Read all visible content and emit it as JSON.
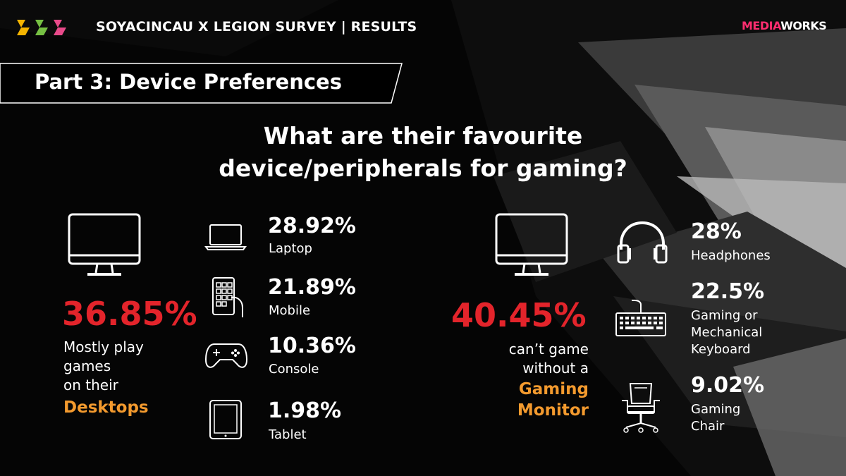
{
  "header": {
    "title": "SOYACINCAU X LEGION SURVEY | RESULTS",
    "brand": {
      "part1": "MEDIA",
      "part2": "WORKS"
    },
    "logo_colors": [
      "#f4b400",
      "#76c043",
      "#e84a8a"
    ]
  },
  "section": {
    "title": "Part 3: Device Preferences"
  },
  "question": {
    "line1": "What are their favourite",
    "line2": "device/peripherals for gaming?"
  },
  "left": {
    "headline_value": "36.85%",
    "desc_line1": "Mostly play",
    "desc_line2": "games",
    "desc_line3": "on their",
    "highlight": "Desktops",
    "items": [
      {
        "value": "28.92%",
        "label": "Laptop",
        "icon": "laptop-icon"
      },
      {
        "value": "21.89%",
        "label": "Mobile",
        "icon": "mobile-icon"
      },
      {
        "value": "10.36%",
        "label": "Console",
        "icon": "gamepad-icon"
      },
      {
        "value": "1.98%",
        "label": "Tablet",
        "icon": "tablet-icon"
      }
    ]
  },
  "right": {
    "headline_value": "40.45%",
    "desc_line1": "can’t game",
    "desc_line2": "without a",
    "highlight_line1": "Gaming",
    "highlight_line2": "Monitor",
    "items": [
      {
        "value": "28%",
        "label_line1": "Headphones",
        "icon": "headphones-icon"
      },
      {
        "value": "22.5%",
        "label_line1": "Gaming or",
        "label_line2": "Mechanical",
        "label_line3": "Keyboard",
        "icon": "keyboard-icon"
      },
      {
        "value": "9.02%",
        "label_line1": "Gaming",
        "label_line2": "Chair",
        "icon": "chair-icon"
      }
    ]
  },
  "colors": {
    "red": "#e3242b",
    "orange": "#f39a2e",
    "pink": "#ff2d6f"
  }
}
